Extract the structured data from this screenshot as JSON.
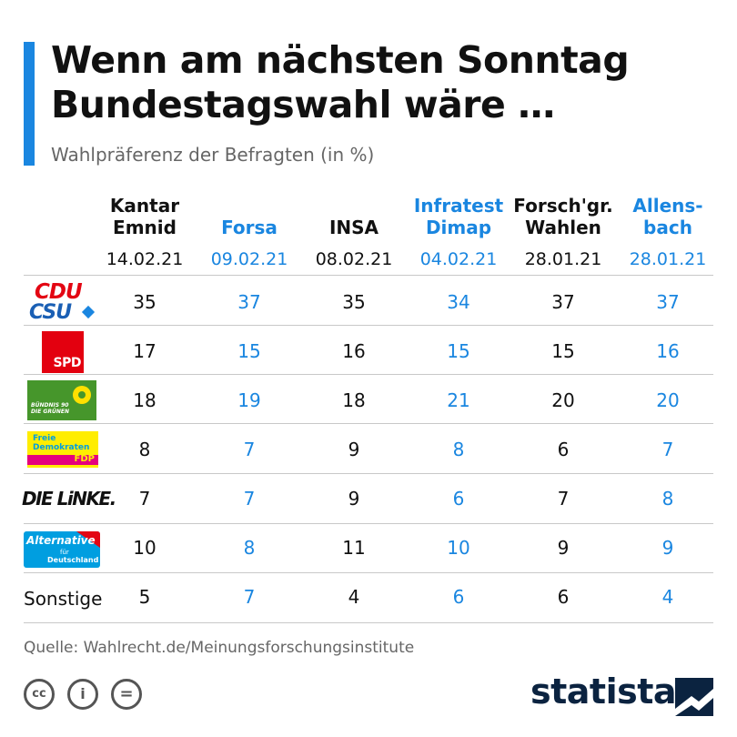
{
  "title_line1": "Wenn am nächsten Sonntag",
  "title_line2": "Bundestagswahl wäre …",
  "subtitle": "Wahlpräferenz der Befragten (in %)",
  "colors": {
    "accent": "#1a86e0",
    "text": "#111111",
    "muted": "#666666",
    "brand": "#0b2340"
  },
  "institutes": [
    {
      "line1": "Kantar",
      "line2": "Emnid",
      "date": "14.02.21"
    },
    {
      "line1": "",
      "line2": "Forsa",
      "date": "09.02.21"
    },
    {
      "line1": "",
      "line2": "INSA",
      "date": "08.02.21"
    },
    {
      "line1": "Infratest",
      "line2": "Dimap",
      "date": "04.02.21"
    },
    {
      "line1": "Forsch'gr.",
      "line2": "Wahlen",
      "date": "28.01.21"
    },
    {
      "line1": "Allens-",
      "line2": "bach",
      "date": "28.01.21"
    }
  ],
  "logos": {
    "cdu": "CDU",
    "csu": "CSU",
    "spd": "SPD",
    "gruene": "BÜNDNIS 90 DIE GRÜNEN",
    "fdp_line1": "Freie",
    "fdp_line2": "Demokraten",
    "fdp_line3": "FDP",
    "linke": "DIE LiNKE.",
    "afd_line1": "Alternative",
    "afd_line2": "für",
    "afd_line3": "Deutschland"
  },
  "chart_data": {
    "type": "table",
    "title": "Wenn am nächsten Sonntag Bundestagswahl wäre …",
    "subtitle": "Wahlpräferenz der Befragten (in %)",
    "columns": [
      "Kantar Emnid",
      "Forsa",
      "INSA",
      "Infratest Dimap",
      "Forsch'gr. Wahlen",
      "Allensbach"
    ],
    "dates": [
      "14.02.21",
      "09.02.21",
      "08.02.21",
      "04.02.21",
      "28.01.21",
      "28.01.21"
    ],
    "rows": [
      {
        "party": "CDU/CSU",
        "values": [
          35,
          37,
          35,
          34,
          37,
          37
        ]
      },
      {
        "party": "SPD",
        "values": [
          17,
          15,
          16,
          15,
          15,
          16
        ]
      },
      {
        "party": "Bündnis 90/Die Grünen",
        "values": [
          18,
          19,
          18,
          21,
          20,
          20
        ]
      },
      {
        "party": "FDP",
        "values": [
          8,
          7,
          9,
          8,
          6,
          7
        ]
      },
      {
        "party": "Die Linke",
        "values": [
          7,
          7,
          9,
          6,
          7,
          8
        ]
      },
      {
        "party": "AfD",
        "values": [
          10,
          8,
          11,
          10,
          9,
          9
        ]
      },
      {
        "party": "Sonstige",
        "label": "Sonstige",
        "values": [
          5,
          7,
          4,
          6,
          6,
          4
        ]
      }
    ]
  },
  "source": "Quelle: Wahlrecht.de/Meinungsforschungsinstitute",
  "footer": {
    "cc1": "cc",
    "cc2": "i",
    "cc3": "=",
    "brand": "statista"
  }
}
